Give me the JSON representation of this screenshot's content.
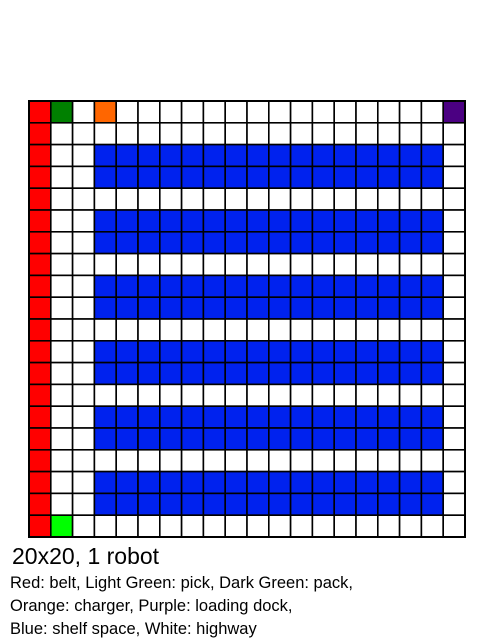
{
  "grid": {
    "rows": 20,
    "cols": 20,
    "colors": {
      "belt": "#ff0000",
      "pick": "#00ff00",
      "pack": "#008000",
      "charger": "#ff6600",
      "loading_dock": "#4b0082",
      "shelf": "#0022ee",
      "highway": "#ffffff",
      "border": "#000000"
    },
    "special_cells": [
      {
        "type": "pack",
        "row": 0,
        "col": 1
      },
      {
        "type": "charger",
        "row": 0,
        "col": 3
      },
      {
        "type": "loading_dock",
        "row": 0,
        "col": 19
      },
      {
        "type": "pick",
        "row": 19,
        "col": 1
      }
    ],
    "belt_column": 0,
    "shelf_cols": [
      3,
      18
    ],
    "shelf_row_pairs": [
      [
        2,
        3
      ],
      [
        5,
        6
      ],
      [
        8,
        9
      ],
      [
        11,
        12
      ],
      [
        14,
        15
      ],
      [
        17,
        18
      ]
    ]
  },
  "caption": {
    "title": "20x20, 1 robot",
    "legend_line1": "Red: belt, Light Green: pick, Dark Green: pack,",
    "legend_line2": "Orange: charger, Purple: loading dock,",
    "legend_line3": "Blue: shelf space, White: highway"
  }
}
